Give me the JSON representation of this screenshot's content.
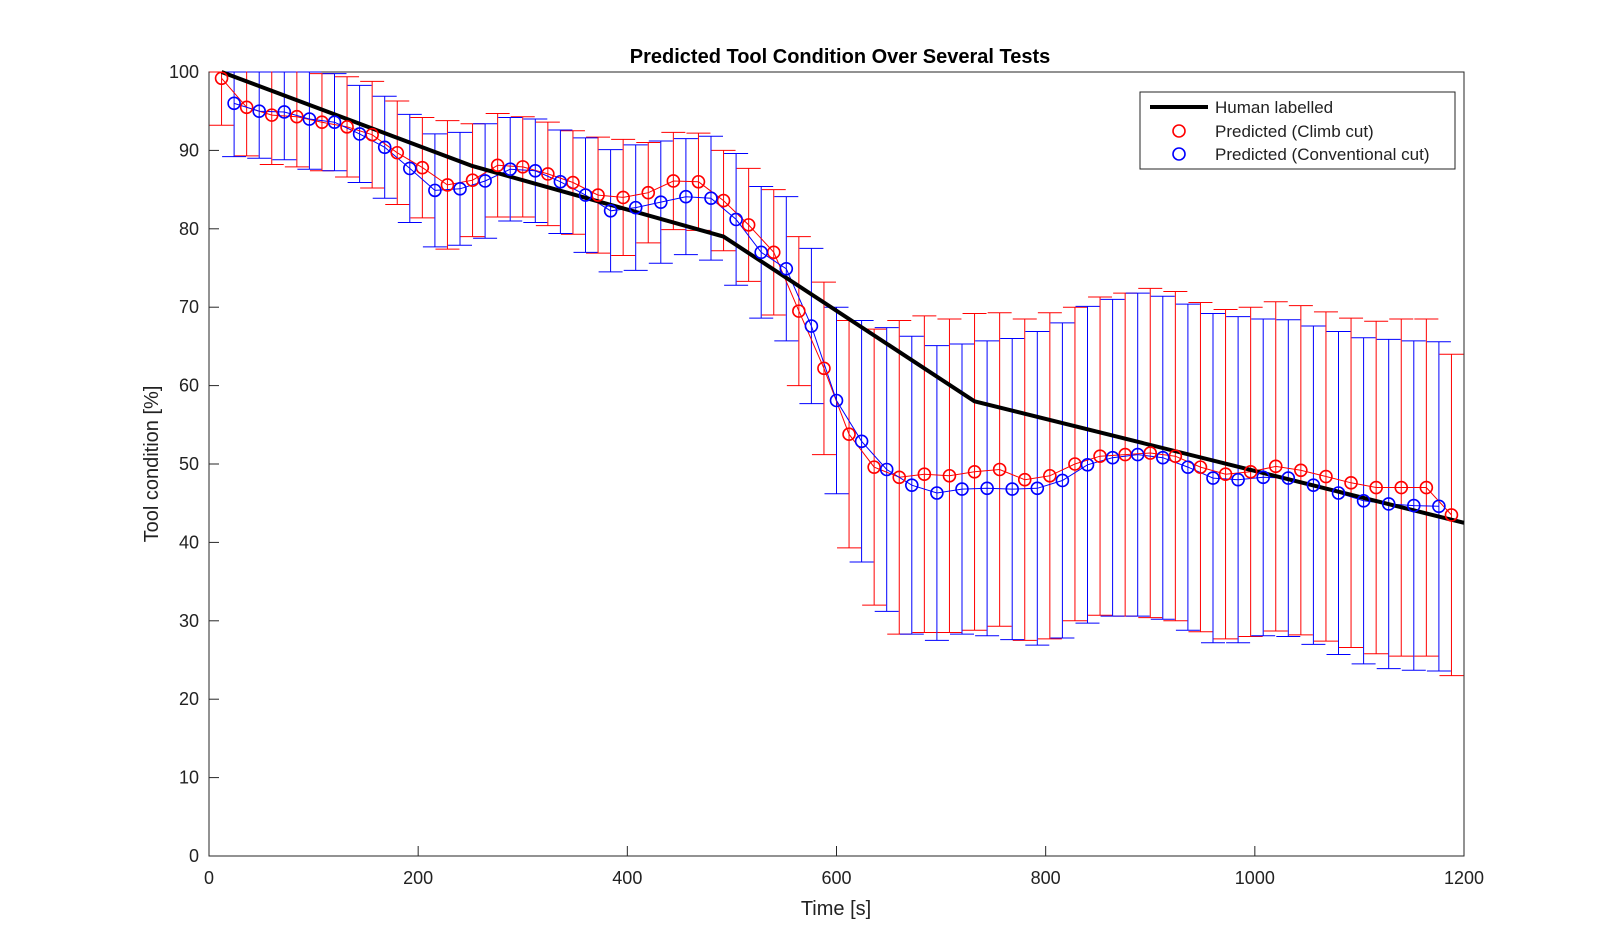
{
  "chart_data": {
    "type": "line",
    "title": "Predicted Tool Condition Over Several Tests",
    "xlabel": "Time [s]",
    "ylabel": "Tool condition [%]",
    "xlim": [
      0,
      1200
    ],
    "ylim": [
      0,
      100
    ],
    "x_ticks": [
      "0",
      "200",
      "400",
      "600",
      "800",
      "1000",
      "1200"
    ],
    "y_ticks": [
      "0",
      "10",
      "20",
      "30",
      "40",
      "50",
      "60",
      "70",
      "80",
      "90",
      "100"
    ],
    "grid": false,
    "legend": {
      "position": "top-right",
      "entries": [
        "Human labelled",
        "Predicted (Climb cut)",
        "Predicted (Conventional cut)"
      ]
    },
    "colors": {
      "human": "#000000",
      "climb": "#ff0000",
      "conventional": "#0000ff"
    },
    "series": [
      {
        "name": "Human labelled",
        "style": "line",
        "x": [
          12,
          252,
          492,
          732,
          1200
        ],
        "y": [
          100,
          88,
          79,
          58,
          42.5
        ]
      },
      {
        "name": "Predicted (Climb cut)",
        "style": "marker-errorbar",
        "x": [
          12,
          36,
          60,
          84,
          108,
          132,
          156,
          180,
          204,
          228,
          252,
          276,
          300,
          324,
          348,
          372,
          396,
          420,
          444,
          468,
          492,
          516,
          540,
          564,
          588,
          612,
          636,
          660,
          684,
          708,
          732,
          756,
          780,
          804,
          828,
          852,
          876,
          900,
          924,
          948,
          972,
          996,
          1020,
          1044,
          1068,
          1092,
          1116,
          1140,
          1164,
          1188
        ],
        "y": [
          99.2,
          95.5,
          94.5,
          94.3,
          93.6,
          93.0,
          92.0,
          89.7,
          87.8,
          85.6,
          86.2,
          88.1,
          87.9,
          87.0,
          85.9,
          84.3,
          84.0,
          84.6,
          86.1,
          86.0,
          83.6,
          80.5,
          77.0,
          69.5,
          62.2,
          53.8,
          49.6,
          48.3,
          48.7,
          48.5,
          49.0,
          49.3,
          48.0,
          48.5,
          50.0,
          51.0,
          51.2,
          51.4,
          51.0,
          49.6,
          48.7,
          49.0,
          49.7,
          49.2,
          48.4,
          47.6,
          47.0,
          47.0,
          47.0,
          43.5
        ],
        "err_low": [
          6.0,
          6.2,
          6.3,
          6.4,
          6.2,
          6.4,
          6.8,
          6.6,
          6.4,
          8.2,
          7.2,
          6.6,
          6.4,
          6.6,
          6.6,
          7.4,
          7.4,
          6.4,
          6.2,
          6.2,
          6.4,
          7.2,
          8.0,
          9.5,
          11.0,
          14.5,
          17.6,
          20.0,
          20.2,
          20.0,
          20.2,
          20.0,
          20.5,
          20.8,
          20.0,
          20.3,
          20.6,
          21.0,
          21.0,
          21.0,
          21.0,
          21.0,
          21.0,
          21.0,
          21.0,
          21.0,
          21.2,
          21.5,
          21.5,
          20.5
        ],
        "err_high": [
          6.0,
          6.2,
          6.3,
          6.4,
          6.2,
          6.4,
          6.8,
          6.6,
          6.4,
          8.2,
          7.2,
          6.6,
          6.4,
          6.6,
          6.6,
          7.4,
          7.4,
          6.4,
          6.2,
          6.2,
          6.4,
          7.2,
          8.0,
          9.5,
          11.0,
          14.5,
          17.6,
          20.0,
          20.2,
          20.0,
          20.2,
          20.0,
          20.5,
          20.8,
          20.0,
          20.3,
          20.6,
          21.0,
          21.0,
          21.0,
          21.0,
          21.0,
          21.0,
          21.0,
          21.0,
          21.0,
          21.2,
          21.5,
          21.5,
          20.5
        ]
      },
      {
        "name": "Predicted (Conventional cut)",
        "style": "marker-errorbar",
        "x": [
          24,
          48,
          72,
          96,
          120,
          144,
          168,
          192,
          216,
          240,
          264,
          288,
          312,
          336,
          360,
          384,
          408,
          432,
          456,
          480,
          504,
          528,
          552,
          576,
          600,
          624,
          648,
          672,
          696,
          720,
          744,
          768,
          792,
          816,
          840,
          864,
          888,
          912,
          936,
          960,
          984,
          1008,
          1032,
          1056,
          1080,
          1104,
          1128,
          1152,
          1176
        ],
        "y": [
          96.0,
          95.0,
          94.9,
          94.0,
          93.6,
          92.1,
          90.4,
          87.7,
          84.9,
          85.1,
          86.1,
          87.6,
          87.4,
          86.0,
          84.3,
          82.3,
          82.7,
          83.4,
          84.1,
          83.9,
          81.2,
          77.0,
          74.9,
          67.6,
          58.1,
          52.9,
          49.3,
          47.3,
          46.3,
          46.8,
          46.9,
          46.8,
          46.9,
          47.9,
          49.9,
          50.8,
          51.2,
          50.8,
          49.6,
          48.2,
          48.0,
          48.3,
          48.2,
          47.3,
          46.3,
          45.3,
          44.9,
          44.7,
          44.6
        ],
        "err_low": [
          6.8,
          6.0,
          6.1,
          6.4,
          6.2,
          6.2,
          6.5,
          6.9,
          7.2,
          7.2,
          7.3,
          6.6,
          6.6,
          6.6,
          7.3,
          7.8,
          8.0,
          7.8,
          7.4,
          7.9,
          8.4,
          8.4,
          9.2,
          9.9,
          11.9,
          15.4,
          18.1,
          19.0,
          18.8,
          18.5,
          18.8,
          19.2,
          20.0,
          20.1,
          20.2,
          20.2,
          20.6,
          20.6,
          20.8,
          21.0,
          20.8,
          20.2,
          20.2,
          20.3,
          20.6,
          20.8,
          21.0,
          21.0,
          21.0
        ],
        "err_high": [
          6.8,
          6.0,
          6.1,
          6.4,
          6.2,
          6.2,
          6.5,
          6.9,
          7.2,
          7.2,
          7.3,
          6.6,
          6.6,
          6.6,
          7.3,
          7.8,
          8.0,
          7.8,
          7.4,
          7.9,
          8.4,
          8.4,
          9.2,
          9.9,
          11.9,
          15.4,
          18.1,
          19.0,
          18.8,
          18.5,
          18.8,
          19.2,
          20.0,
          20.1,
          20.2,
          20.2,
          20.6,
          20.6,
          20.8,
          21.0,
          20.8,
          20.2,
          20.2,
          20.3,
          20.6,
          20.8,
          21.0,
          21.0,
          21.0
        ]
      }
    ]
  }
}
